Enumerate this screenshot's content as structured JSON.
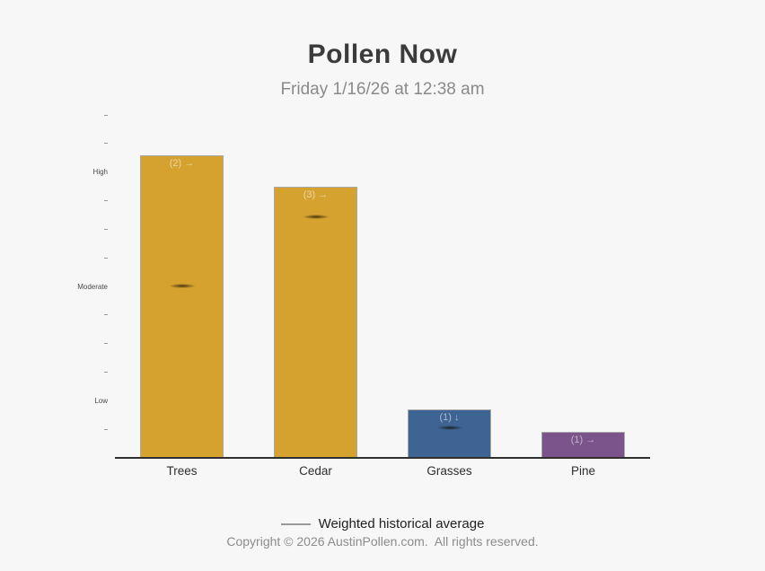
{
  "chart_data": {
    "type": "bar",
    "title": "Pollen Now",
    "subtitle": "Friday 1/16/26 at 12:38 am",
    "categories": [
      "Trees",
      "Cedar",
      "Grasses",
      "Pine"
    ],
    "values": [
      10.6,
      9.5,
      1.7,
      0.9
    ],
    "bar_labels": [
      "(2) →",
      "(3) →",
      "(1) ↓",
      "(1) →"
    ],
    "bar_colors": [
      "#d5a22f",
      "#d5a22f",
      "#3e6494",
      "#7b548c"
    ],
    "historical_averages": [
      6.03,
      8.45,
      1.05,
      null
    ],
    "y_axis": {
      "min": 0,
      "max": 12,
      "tick_step": 1,
      "named_ticks": {
        "2": "Low",
        "6": "Moderate",
        "10": "High"
      }
    },
    "legend": {
      "label": "Weighted historical average",
      "position": "bottom"
    },
    "grid": "off"
  },
  "footer": {
    "copyright": "Copyright © 2026 AustinPollen.com.  All rights reserved."
  }
}
